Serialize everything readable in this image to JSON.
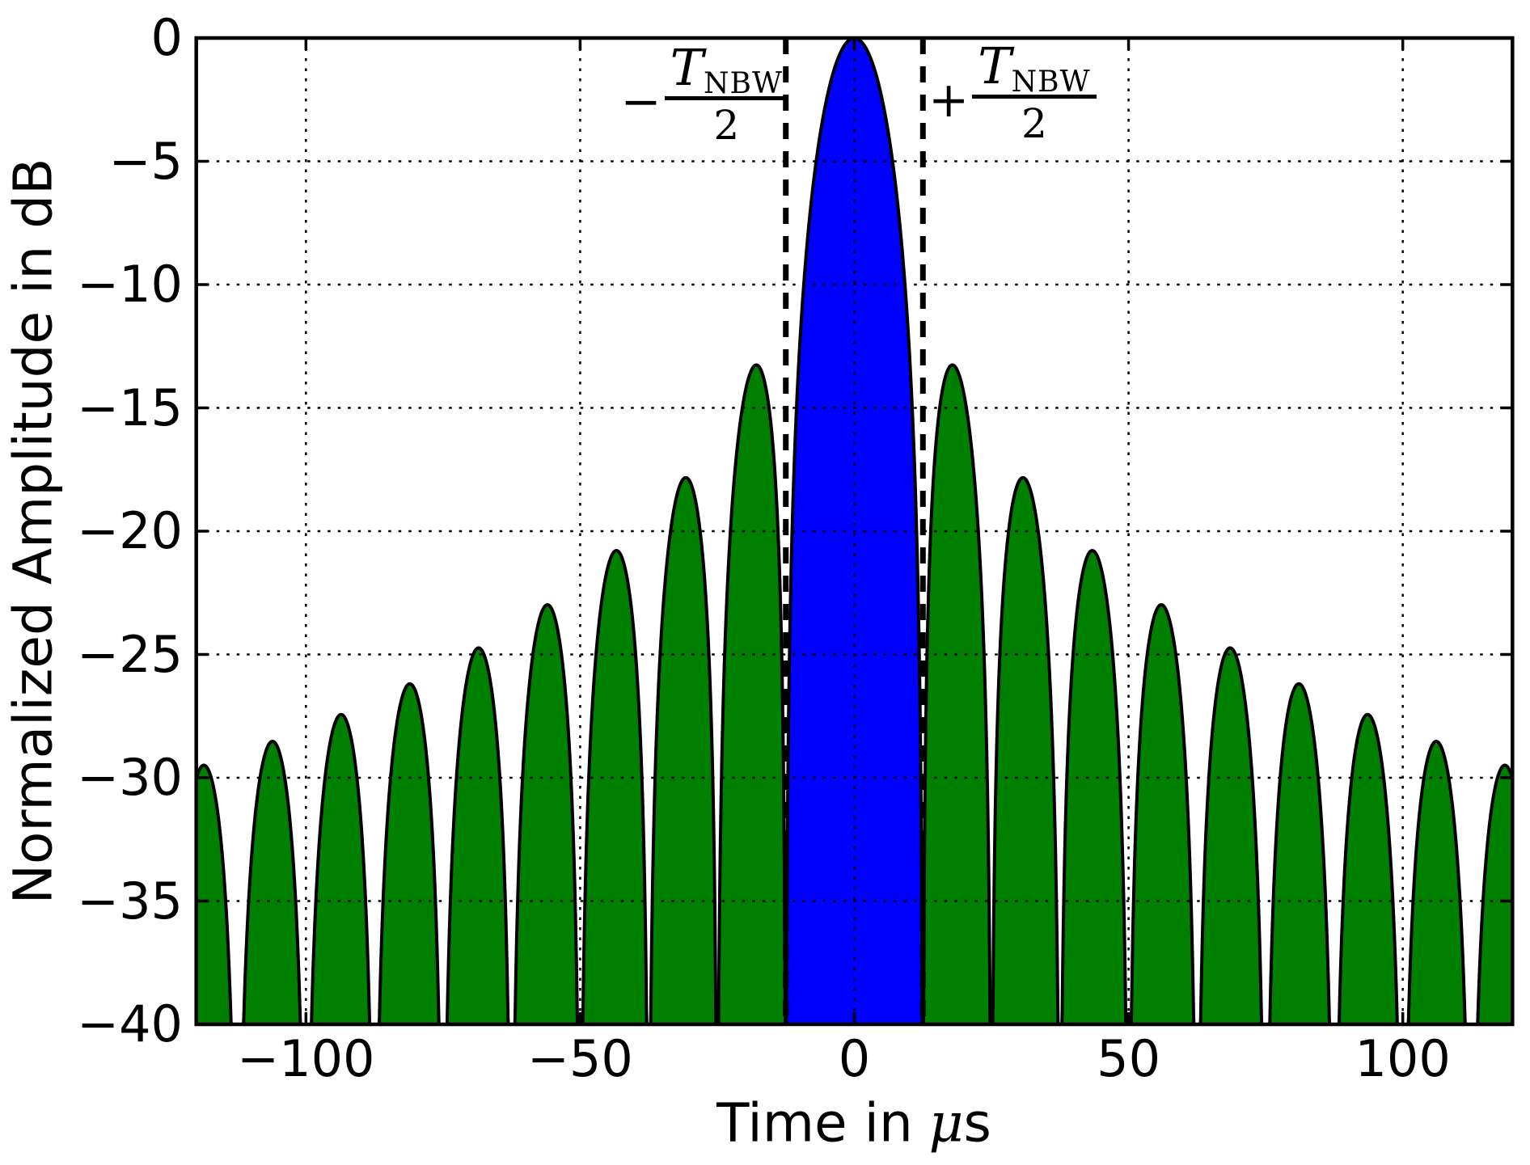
{
  "chart_data": {
    "type": "area",
    "title": "",
    "xlabel": "Time in μs",
    "ylabel": "Normalized Amplitude in dB",
    "xlim": [
      -120,
      120
    ],
    "ylim": [
      -40,
      0
    ],
    "x_ticks": {
      "values": [
        -100,
        -50,
        0,
        50,
        100
      ],
      "labels": [
        "−100",
        "−50",
        "0",
        "50",
        "100"
      ]
    },
    "y_ticks": {
      "values": [
        0,
        -5,
        -10,
        -15,
        -20,
        -25,
        -30,
        -35,
        -40
      ],
      "labels": [
        "0",
        "−5",
        "−10",
        "−15",
        "−20",
        "−25",
        "−30",
        "−35",
        "−40"
      ]
    },
    "grid": {
      "on": true,
      "style": "dotted",
      "color": "#000000"
    },
    "curve": {
      "description": "20*log10(|sinc(t/12.5)|) in dB, sinc(x)=sin(pi*x)/(pi*x), clipped at -40 dB",
      "null_spacing_us": 12.5,
      "clip_db": -40,
      "mainlobe": {
        "range_us": [
          -12.5,
          12.5
        ],
        "peak_db": 0,
        "fill": "#0000ff"
      },
      "sidelobe_fill": "#008000",
      "outline_color": "#000000",
      "sidelobe_peaks": [
        {
          "t_us": 17.9,
          "db": -13.3
        },
        {
          "t_us": 30.7,
          "db": -17.8
        },
        {
          "t_us": 43.4,
          "db": -20.8
        },
        {
          "t_us": 56.0,
          "db": -23.0
        },
        {
          "t_us": 68.5,
          "db": -24.7
        },
        {
          "t_us": 81.1,
          "db": -26.2
        },
        {
          "t_us": 93.6,
          "db": -27.4
        },
        {
          "t_us": 106.1,
          "db": -28.5
        },
        {
          "t_us": 118.6,
          "db": -29.4
        }
      ],
      "value_at_plot_edges_db": -30.0,
      "nulls_us": [
        -112.5,
        -100,
        -87.5,
        -75,
        -62.5,
        -50,
        -37.5,
        -25,
        -12.5,
        12.5,
        25,
        37.5,
        50,
        62.5,
        75,
        87.5,
        100,
        112.5
      ]
    },
    "marker_lines": {
      "x_us": [
        -12.5,
        12.5
      ],
      "style": "dashed",
      "color": "#000000"
    },
    "legend": null
  },
  "labels": {
    "xlabel_prefix": "Time in",
    "xlabel_mu": "μ",
    "xlabel_suffix": "s",
    "ylabel": "Normalized Amplitude in dB"
  },
  "annotations": {
    "left": {
      "sign": "−",
      "numerator_main": "T",
      "numerator_sub": "NBW",
      "denominator": "2"
    },
    "right": {
      "sign": "+",
      "numerator_main": "T",
      "numerator_sub": "NBW",
      "denominator": "2"
    }
  }
}
